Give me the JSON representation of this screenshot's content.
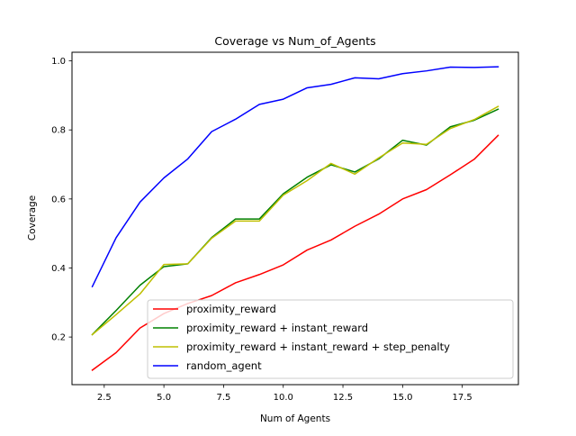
{
  "chart_data": {
    "type": "line",
    "title": "Coverage vs Num_of_Agents",
    "xlabel": "Num of Agents",
    "ylabel": "Coverage",
    "xlim": [
      1.15,
      19.85
    ],
    "ylim": [
      0.062,
      1.025
    ],
    "grid": false,
    "legend_position": "lower-right",
    "x": [
      2,
      3,
      4,
      5,
      6,
      7,
      8,
      9,
      10,
      11,
      12,
      13,
      14,
      15,
      16,
      17,
      18,
      19
    ],
    "xticks": [
      2.5,
      5.0,
      7.5,
      10.0,
      12.5,
      15.0,
      17.5
    ],
    "xtick_labels": [
      "2.5",
      "5.0",
      "7.5",
      "10.0",
      "12.5",
      "15.0",
      "17.5"
    ],
    "yticks": [
      0.2,
      0.4,
      0.6,
      0.8,
      1.0
    ],
    "ytick_labels": [
      "0.2",
      "0.4",
      "0.6",
      "0.8",
      "1.0"
    ],
    "series": [
      {
        "name": "proximity_reward",
        "color": "#ff0000",
        "values": [
          0.104,
          0.155,
          0.226,
          0.268,
          0.297,
          0.32,
          0.357,
          0.381,
          0.409,
          0.452,
          0.481,
          0.521,
          0.556,
          0.6,
          0.627,
          0.67,
          0.715,
          0.784
        ]
      },
      {
        "name": "proximity_reward + instant_reward",
        "color": "#008000",
        "values": [
          0.207,
          0.277,
          0.35,
          0.404,
          0.412,
          0.488,
          0.542,
          0.542,
          0.615,
          0.663,
          0.699,
          0.678,
          0.716,
          0.77,
          0.756,
          0.809,
          0.828,
          0.86
        ]
      },
      {
        "name": "proximity_reward + instant_reward + step_penalty",
        "color": "#bfbf00",
        "values": [
          0.207,
          0.265,
          0.325,
          0.41,
          0.412,
          0.486,
          0.536,
          0.536,
          0.611,
          0.653,
          0.703,
          0.672,
          0.719,
          0.762,
          0.758,
          0.804,
          0.83,
          0.868
        ]
      },
      {
        "name": "random_agent",
        "color": "#0000ff",
        "values": [
          0.346,
          0.488,
          0.591,
          0.661,
          0.716,
          0.795,
          0.831,
          0.874,
          0.889,
          0.922,
          0.932,
          0.951,
          0.948,
          0.963,
          0.971,
          0.982,
          0.981,
          0.983
        ]
      }
    ]
  }
}
